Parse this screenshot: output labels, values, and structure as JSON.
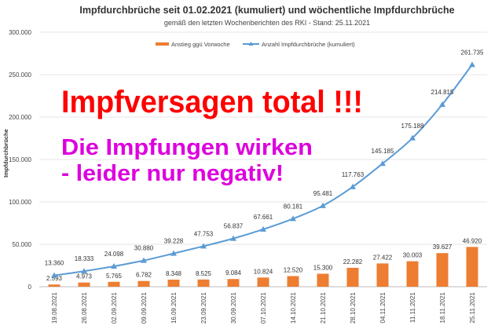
{
  "chart_data": {
    "type": "bar+line",
    "title": "Impfdurchbrüche seit 01.02.2021 (kumuliert) und wöchentliche Impfdurchbrüche",
    "subtitle": "gemäß den letzten Wochenberichten des RKI - Stand: 25.11.2021",
    "ylabel": "Impfdurchbrüche",
    "xlabel": "",
    "ylim": [
      0,
      300000
    ],
    "yticks": [
      0,
      50000,
      100000,
      150000,
      200000,
      250000,
      300000
    ],
    "ytick_labels": [
      "0",
      "50.000",
      "100.000",
      "150.000",
      "200.000",
      "250.000",
      "300.000"
    ],
    "grid": true,
    "legend_position": "top",
    "categories": [
      "19.08.2021",
      "26.08.2021",
      "02.09.2021",
      "09.09.2021",
      "16.09.2021",
      "23.09.2021",
      "30.09.2021",
      "07.10.2021",
      "14.10.2021",
      "21.10.2021",
      "28.10.2021",
      "04.11.2021",
      "11.11.2021",
      "18.11.2021",
      "25.11.2021"
    ],
    "series": [
      {
        "name": "Anstieg ggü Vorwoche",
        "type": "bar",
        "color": "#ED7D31",
        "values": [
          2593,
          4973,
          5765,
          6782,
          8348,
          8525,
          9084,
          10824,
          12520,
          15300,
          22282,
          27422,
          30003,
          39627,
          46920
        ],
        "labels": [
          "2.593",
          "4.973",
          "5.765",
          "6.782",
          "8.348",
          "8.525",
          "9.084",
          "10.824",
          "12.520",
          "15.300",
          "22.282",
          "27.422",
          "30.003",
          "39.627",
          "46.920"
        ]
      },
      {
        "name": "Anzahl Impfdurchbrüche (kumuliert)",
        "type": "line",
        "color": "#5B9BD5",
        "values": [
          13360,
          18333,
          24098,
          30880,
          39228,
          47753,
          56837,
          67661,
          80181,
          95481,
          117763,
          145185,
          175188,
          214815,
          261735
        ],
        "labels": [
          "13.360",
          "18.333",
          "24.098",
          "30.880",
          "39.228",
          "47.753",
          "56.837",
          "67.661",
          "80.181",
          "95.481",
          "117.763",
          "145.185",
          "175.188",
          "214.815",
          "261.735"
        ]
      }
    ],
    "annotations": [
      {
        "text": "Impfversagen total !!!",
        "color": "#FF0000"
      },
      {
        "text": "Die Impfungen wirken",
        "color": "#DD00DD"
      },
      {
        "text": "- leider nur negativ!",
        "color": "#DD00DD"
      }
    ]
  }
}
